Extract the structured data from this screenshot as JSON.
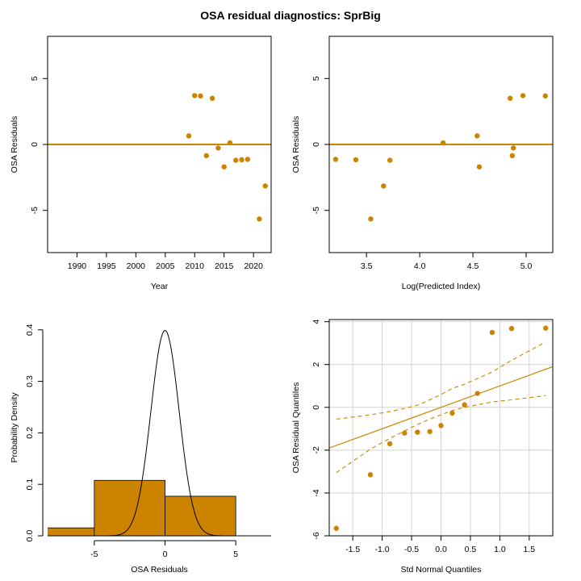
{
  "title": "OSA residual diagnostics: SprBig",
  "colors": {
    "accent": "#cc8400",
    "frame": "#000000",
    "grid": "#d3d3d3"
  },
  "chart_data": [
    {
      "id": "resid-vs-year",
      "type": "scatter",
      "xlabel": "Year",
      "ylabel": "OSA Residuals",
      "xlim": [
        1985,
        2023
      ],
      "ylim": [
        -8.2,
        8.2
      ],
      "xticks": [
        1990,
        1995,
        2000,
        2005,
        2010,
        2015,
        2020
      ],
      "yticks": [
        -5,
        0,
        5
      ],
      "hline": 0,
      "x": [
        2009,
        2010,
        2011,
        2012,
        2013,
        2014,
        2015,
        2016,
        2017,
        2018,
        2019,
        2021,
        2022
      ],
      "y": [
        0.65,
        3.7,
        3.68,
        -0.85,
        3.5,
        -0.27,
        -1.7,
        0.12,
        -1.2,
        -1.16,
        -1.13,
        -5.65,
        -3.15
      ]
    },
    {
      "id": "resid-vs-predicted",
      "type": "scatter",
      "xlabel": "Log(Predicted Index)",
      "ylabel": "OSA Residuals",
      "xlim": [
        3.15,
        5.25
      ],
      "ylim": [
        -8.2,
        8.2
      ],
      "xticks": [
        "3.5",
        "4.0",
        "4.5",
        "5.0"
      ],
      "yticks": [
        -5,
        0,
        5
      ],
      "hline": 0,
      "x": [
        3.21,
        3.4,
        3.54,
        3.66,
        3.72,
        4.22,
        4.54,
        4.56,
        4.85,
        4.87,
        4.88,
        4.97,
        5.18
      ],
      "y": [
        -1.13,
        -1.16,
        -5.65,
        -3.15,
        -1.2,
        0.12,
        0.65,
        -1.7,
        3.5,
        -0.85,
        -0.27,
        3.7,
        3.68
      ]
    },
    {
      "id": "resid-histogram",
      "type": "bar",
      "xlabel": "OSA Residuals",
      "ylabel": "Probability Density",
      "xlim": [
        -8.3,
        7.5
      ],
      "ylim": [
        0,
        0.42
      ],
      "xticks": [
        "-5",
        "0",
        "5"
      ],
      "yticks": [
        "0.0",
        "0.1",
        "0.2",
        "0.3",
        "0.4"
      ],
      "bins": [
        [
          -10,
          -5
        ],
        [
          -5,
          0
        ],
        [
          0,
          5
        ]
      ],
      "values": [
        0.0154,
        0.1077,
        0.0769
      ],
      "overlay": "standard normal density curve"
    },
    {
      "id": "qq-plot",
      "type": "scatter",
      "xlabel": "Std Normal Quantiles",
      "ylabel": "OSA Residual Quantiles",
      "xlim": [
        -1.9,
        1.9
      ],
      "ylim": [
        -6,
        4.1
      ],
      "xticks": [
        "-1.5",
        "-1.0",
        "-0.5",
        "0.0",
        "0.5",
        "1.0",
        "1.5"
      ],
      "yticks": [
        -6,
        -4,
        -2,
        0,
        2,
        4
      ],
      "grid": true,
      "x": [
        -1.78,
        -1.2,
        -0.87,
        -0.62,
        -0.4,
        -0.19,
        0.0,
        0.19,
        0.4,
        0.62,
        0.87,
        1.2,
        1.78
      ],
      "y": [
        -5.65,
        -3.15,
        -1.7,
        -1.2,
        -1.16,
        -1.13,
        -0.85,
        -0.27,
        0.12,
        0.65,
        3.5,
        3.68,
        3.7
      ],
      "reference_line": {
        "intercept": 0,
        "slope": 1
      },
      "confidence_band": {
        "x": [
          -1.78,
          -1.2,
          -0.87,
          -0.62,
          -0.4,
          -0.19,
          0.0,
          0.19,
          0.4,
          0.62,
          0.87,
          1.2,
          1.78
        ],
        "lower": [
          -3.05,
          -1.95,
          -1.45,
          -1.1,
          -0.8,
          -0.55,
          -0.35,
          -0.15,
          0.0,
          0.12,
          0.25,
          0.35,
          0.55
        ],
        "upper": [
          -0.55,
          -0.35,
          -0.2,
          -0.05,
          0.1,
          0.35,
          0.6,
          0.88,
          1.08,
          1.35,
          1.65,
          2.2,
          3.05
        ]
      }
    }
  ]
}
